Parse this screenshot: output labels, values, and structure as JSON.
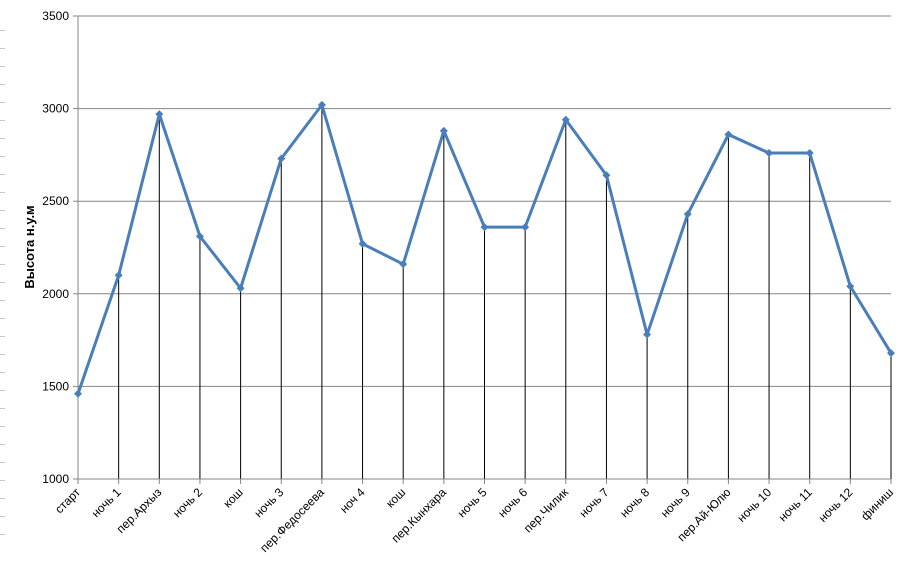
{
  "chart_data": {
    "type": "line",
    "title": "",
    "xlabel": "",
    "ylabel": "Высота н.у.м",
    "ylim": [
      1000,
      3500
    ],
    "yticks": [
      1000,
      1500,
      2000,
      2500,
      3000,
      3500
    ],
    "grid": true,
    "drop_lines": true,
    "legend": "none",
    "line_color": "#4a7eba",
    "categories": [
      "старт",
      "ночь 1",
      "пер.Архыз",
      "ночь 2",
      "кош",
      "ночь 3",
      "пер.Федосеева",
      "ноч 4",
      "кош",
      "пер.Кынхара",
      "ночь 5",
      "ночь 6",
      "пер.Чилик",
      "ночь 7",
      "ночь 8",
      "ночь 9",
      "пер.Ай-Юлю",
      "ночь 10",
      "ночь 11",
      "ночь 12",
      "финиш"
    ],
    "values": [
      1460,
      2100,
      2970,
      2310,
      2030,
      2730,
      3020,
      2270,
      2160,
      2880,
      2360,
      2360,
      2940,
      2640,
      1780,
      2430,
      2860,
      2760,
      2760,
      2040,
      1680
    ]
  }
}
